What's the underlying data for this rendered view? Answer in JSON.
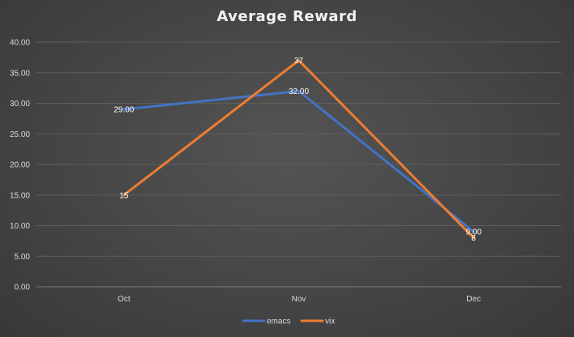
{
  "chart_data": {
    "type": "line",
    "title": "Average Reward",
    "xlabel": "",
    "ylabel": "",
    "categories": [
      "Oct",
      "Nov",
      "Dec"
    ],
    "ylim": [
      0,
      40
    ],
    "yticks": [
      "0.00",
      "5.00",
      "10.00",
      "15.00",
      "20.00",
      "25.00",
      "30.00",
      "35.00",
      "40.00"
    ],
    "grid": true,
    "legend_position": "bottom",
    "series": [
      {
        "name": "emacs",
        "values": [
          29,
          32,
          9
        ],
        "labels": [
          "29.00",
          "32.00",
          "9.00"
        ],
        "color": "#4472c4"
      },
      {
        "name": "vix",
        "values": [
          15,
          37,
          8
        ],
        "labels": [
          "15",
          "37",
          "8"
        ],
        "color": "#ed7d31"
      }
    ]
  }
}
